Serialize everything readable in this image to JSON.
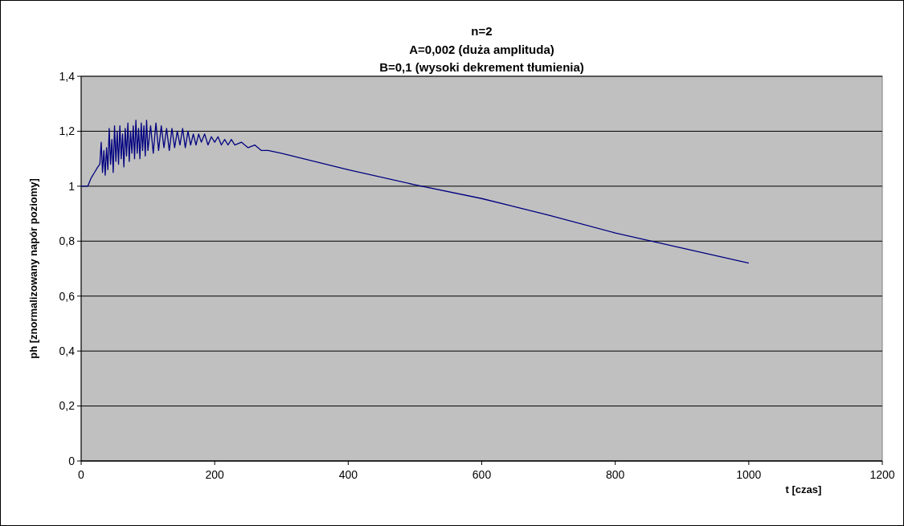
{
  "chart_data": {
    "type": "line",
    "title": "n=2",
    "subtitle": "A=0,002 (duża amplituda)\nB=0,1 (wysoki dekrement tłumienia)",
    "xlabel": "t [czas]",
    "ylabel": "ph [znormalizowany napór poziomy]",
    "xlim": [
      0,
      1200
    ],
    "xticks": [
      0,
      200,
      400,
      600,
      800,
      1000,
      1200
    ],
    "ylim": [
      0,
      1.4
    ],
    "yticks": [
      0,
      {
        "value": 0.2,
        "label": "0,2"
      },
      {
        "value": 0.4,
        "label": "0,4"
      },
      {
        "value": 0.6,
        "label": "0,6"
      },
      {
        "value": 0.8,
        "label": "0,8"
      },
      1,
      {
        "value": 1.2,
        "label": "1,2"
      },
      {
        "value": 1.4,
        "label": "1,4"
      }
    ],
    "grid": "y",
    "series": [
      {
        "color": "#000080",
        "x": [
          0,
          10,
          15,
          20,
          25,
          28,
          30,
          32,
          34,
          36,
          38,
          40,
          42,
          44,
          46,
          48,
          50,
          52,
          54,
          56,
          58,
          60,
          62,
          64,
          66,
          68,
          70,
          72,
          74,
          76,
          78,
          80,
          82,
          84,
          86,
          88,
          90,
          92,
          94,
          96,
          98,
          100,
          104,
          108,
          112,
          116,
          120,
          124,
          128,
          132,
          136,
          140,
          144,
          148,
          152,
          156,
          160,
          164,
          168,
          172,
          176,
          180,
          185,
          190,
          195,
          200,
          205,
          210,
          215,
          220,
          225,
          230,
          240,
          250,
          260,
          270,
          280,
          300,
          350,
          400,
          500,
          600,
          700,
          800,
          900,
          1000
        ],
        "values": [
          1,
          1,
          1.03,
          1.05,
          1.07,
          1.08,
          1.16,
          1.05,
          1.13,
          1.04,
          1.14,
          1.06,
          1.21,
          1.08,
          1.17,
          1.05,
          1.22,
          1.09,
          1.2,
          1.08,
          1.22,
          1.1,
          1.19,
          1.07,
          1.21,
          1.11,
          1.23,
          1.09,
          1.2,
          1.12,
          1.22,
          1.1,
          1.24,
          1.12,
          1.21,
          1.1,
          1.23,
          1.13,
          1.22,
          1.11,
          1.24,
          1.13,
          1.22,
          1.12,
          1.23,
          1.13,
          1.22,
          1.14,
          1.21,
          1.13,
          1.21,
          1.14,
          1.2,
          1.15,
          1.21,
          1.14,
          1.2,
          1.15,
          1.19,
          1.15,
          1.19,
          1.16,
          1.19,
          1.15,
          1.18,
          1.16,
          1.18,
          1.15,
          1.17,
          1.15,
          1.17,
          1.15,
          1.16,
          1.14,
          1.15,
          1.13,
          1.13,
          1.12,
          1.09,
          1.06,
          1.005,
          0.955,
          0.895,
          0.83,
          0.775,
          0.72
        ]
      }
    ]
  }
}
